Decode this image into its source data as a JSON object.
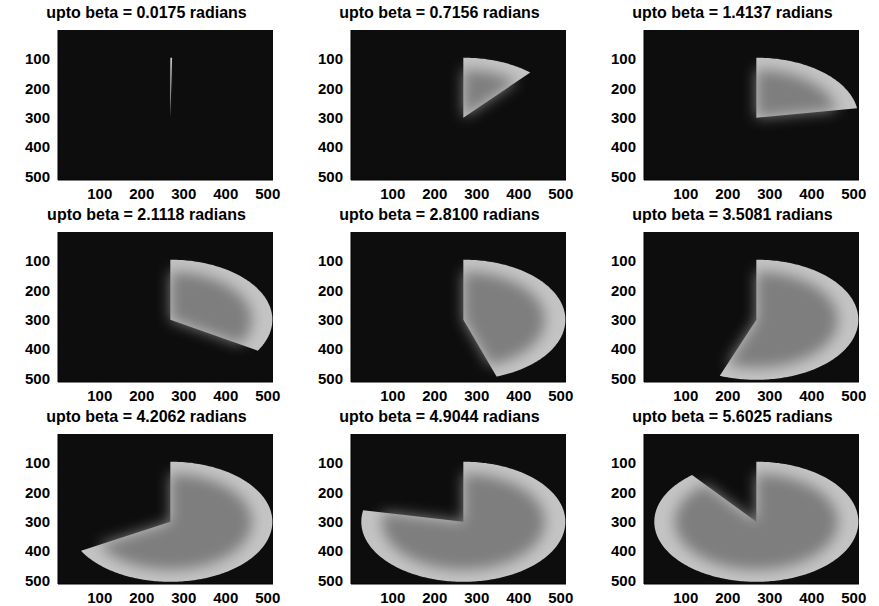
{
  "chart_data": [
    {
      "type": "image",
      "title": "upto beta = 0.0175 radians",
      "beta": 0.0175,
      "ellipse": {
        "cx": 268,
        "cy": 300,
        "rx": 243,
        "ry": 205
      },
      "xlim": [
        0.5,
        512.5
      ],
      "ylim": [
        0.5,
        512.5
      ],
      "xticks": [
        100,
        200,
        300,
        400,
        500
      ],
      "yticks": [
        100,
        200,
        300,
        400,
        500
      ],
      "grid": false
    },
    {
      "type": "image",
      "title": "upto beta = 0.7156 radians",
      "beta": 0.7156,
      "ellipse": {
        "cx": 268,
        "cy": 300,
        "rx": 243,
        "ry": 205
      },
      "xlim": [
        0.5,
        512.5
      ],
      "ylim": [
        0.5,
        512.5
      ],
      "xticks": [
        100,
        200,
        300,
        400,
        500
      ],
      "yticks": [
        100,
        200,
        300,
        400,
        500
      ],
      "grid": false
    },
    {
      "type": "image",
      "title": "upto beta = 1.4137 radians",
      "beta": 1.4137,
      "ellipse": {
        "cx": 268,
        "cy": 300,
        "rx": 243,
        "ry": 205
      },
      "xlim": [
        0.5,
        512.5
      ],
      "ylim": [
        0.5,
        512.5
      ],
      "xticks": [
        100,
        200,
        300,
        400,
        500
      ],
      "yticks": [
        100,
        200,
        300,
        400,
        500
      ],
      "grid": false
    },
    {
      "type": "image",
      "title": "upto beta = 2.1118 radians",
      "beta": 2.1118,
      "ellipse": {
        "cx": 268,
        "cy": 300,
        "rx": 243,
        "ry": 205
      },
      "xlim": [
        0.5,
        512.5
      ],
      "ylim": [
        0.5,
        512.5
      ],
      "xticks": [
        100,
        200,
        300,
        400,
        500
      ],
      "yticks": [
        100,
        200,
        300,
        400,
        500
      ],
      "grid": false
    },
    {
      "type": "image",
      "title": "upto beta = 2.8100 radians",
      "beta": 2.81,
      "ellipse": {
        "cx": 268,
        "cy": 300,
        "rx": 243,
        "ry": 205
      },
      "xlim": [
        0.5,
        512.5
      ],
      "ylim": [
        0.5,
        512.5
      ],
      "xticks": [
        100,
        200,
        300,
        400,
        500
      ],
      "yticks": [
        100,
        200,
        300,
        400,
        500
      ],
      "grid": false
    },
    {
      "type": "image",
      "title": "upto beta = 3.5081 radians",
      "beta": 3.5081,
      "ellipse": {
        "cx": 268,
        "cy": 300,
        "rx": 243,
        "ry": 205
      },
      "xlim": [
        0.5,
        512.5
      ],
      "ylim": [
        0.5,
        512.5
      ],
      "xticks": [
        100,
        200,
        300,
        400,
        500
      ],
      "yticks": [
        100,
        200,
        300,
        400,
        500
      ],
      "grid": false
    },
    {
      "type": "image",
      "title": "upto beta = 4.2062 radians",
      "beta": 4.2062,
      "ellipse": {
        "cx": 268,
        "cy": 300,
        "rx": 243,
        "ry": 205
      },
      "xlim": [
        0.5,
        512.5
      ],
      "ylim": [
        0.5,
        512.5
      ],
      "xticks": [
        100,
        200,
        300,
        400,
        500
      ],
      "yticks": [
        100,
        200,
        300,
        400,
        500
      ],
      "grid": false
    },
    {
      "type": "image",
      "title": "upto beta = 4.9044 radians",
      "beta": 4.9044,
      "ellipse": {
        "cx": 268,
        "cy": 300,
        "rx": 243,
        "ry": 205
      },
      "xlim": [
        0.5,
        512.5
      ],
      "ylim": [
        0.5,
        512.5
      ],
      "xticks": [
        100,
        200,
        300,
        400,
        500
      ],
      "yticks": [
        100,
        200,
        300,
        400,
        500
      ],
      "grid": false
    },
    {
      "type": "image",
      "title": "upto beta = 5.6025 radians",
      "beta": 5.6025,
      "ellipse": {
        "cx": 268,
        "cy": 300,
        "rx": 243,
        "ry": 205
      },
      "xlim": [
        0.5,
        512.5
      ],
      "ylim": [
        0.5,
        512.5
      ],
      "xticks": [
        100,
        200,
        300,
        400,
        500
      ],
      "yticks": [
        100,
        200,
        300,
        400,
        500
      ],
      "grid": false
    }
  ]
}
